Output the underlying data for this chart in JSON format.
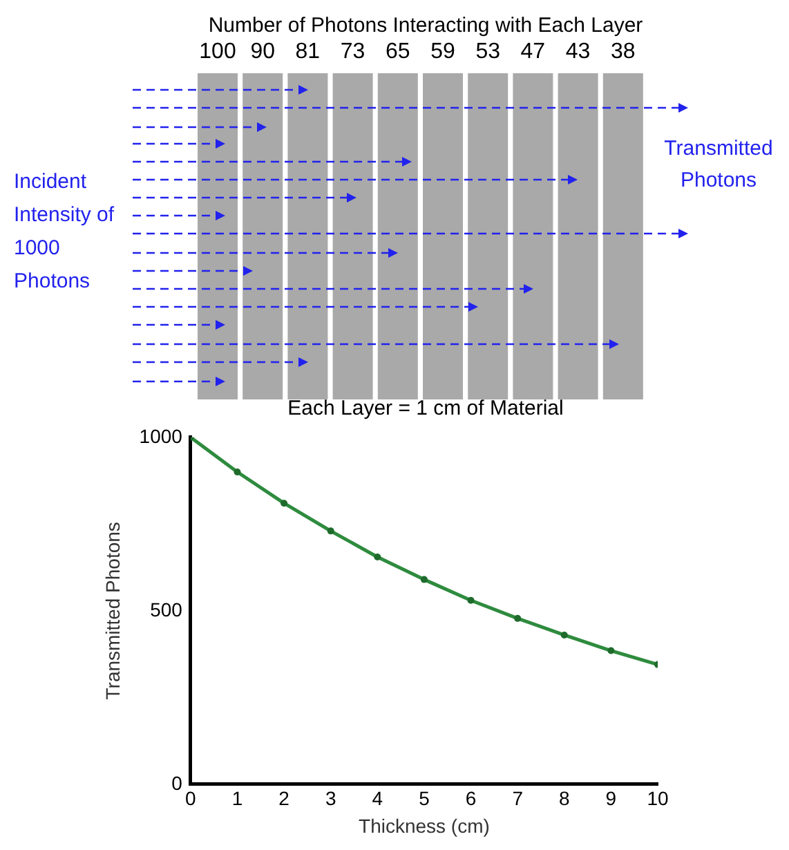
{
  "chart_data": {
    "type": "line",
    "xlabel": "Thickness (cm)",
    "ylabel": "Transmitted Photons",
    "x": [
      0,
      1,
      2,
      3,
      4,
      5,
      6,
      7,
      8,
      9,
      10
    ],
    "series": [
      {
        "color": "#2e8b3e",
        "values": [
          1000,
          900,
          810,
          730,
          655,
          590,
          530,
          478,
          430,
          385,
          345
        ]
      }
    ],
    "xlim": [
      0,
      10
    ],
    "xticks": [
      0,
      1,
      2,
      3,
      4,
      5,
      6,
      7,
      8,
      9,
      10
    ],
    "ylim": [
      0,
      1000
    ],
    "yticks": [
      0,
      500,
      1000
    ],
    "grid": false,
    "legend": false,
    "marker": "circle",
    "line_style": "solid",
    "annotations": [
      "Number of Photons Interacting with Each Layer",
      "100",
      "90",
      "81",
      "73",
      "65",
      "59",
      "53",
      "47",
      "43",
      "38",
      "Incident Intensity of 1000 Photons",
      "Transmitted Photons",
      "Each Layer = 1 cm of Material"
    ]
  }
}
